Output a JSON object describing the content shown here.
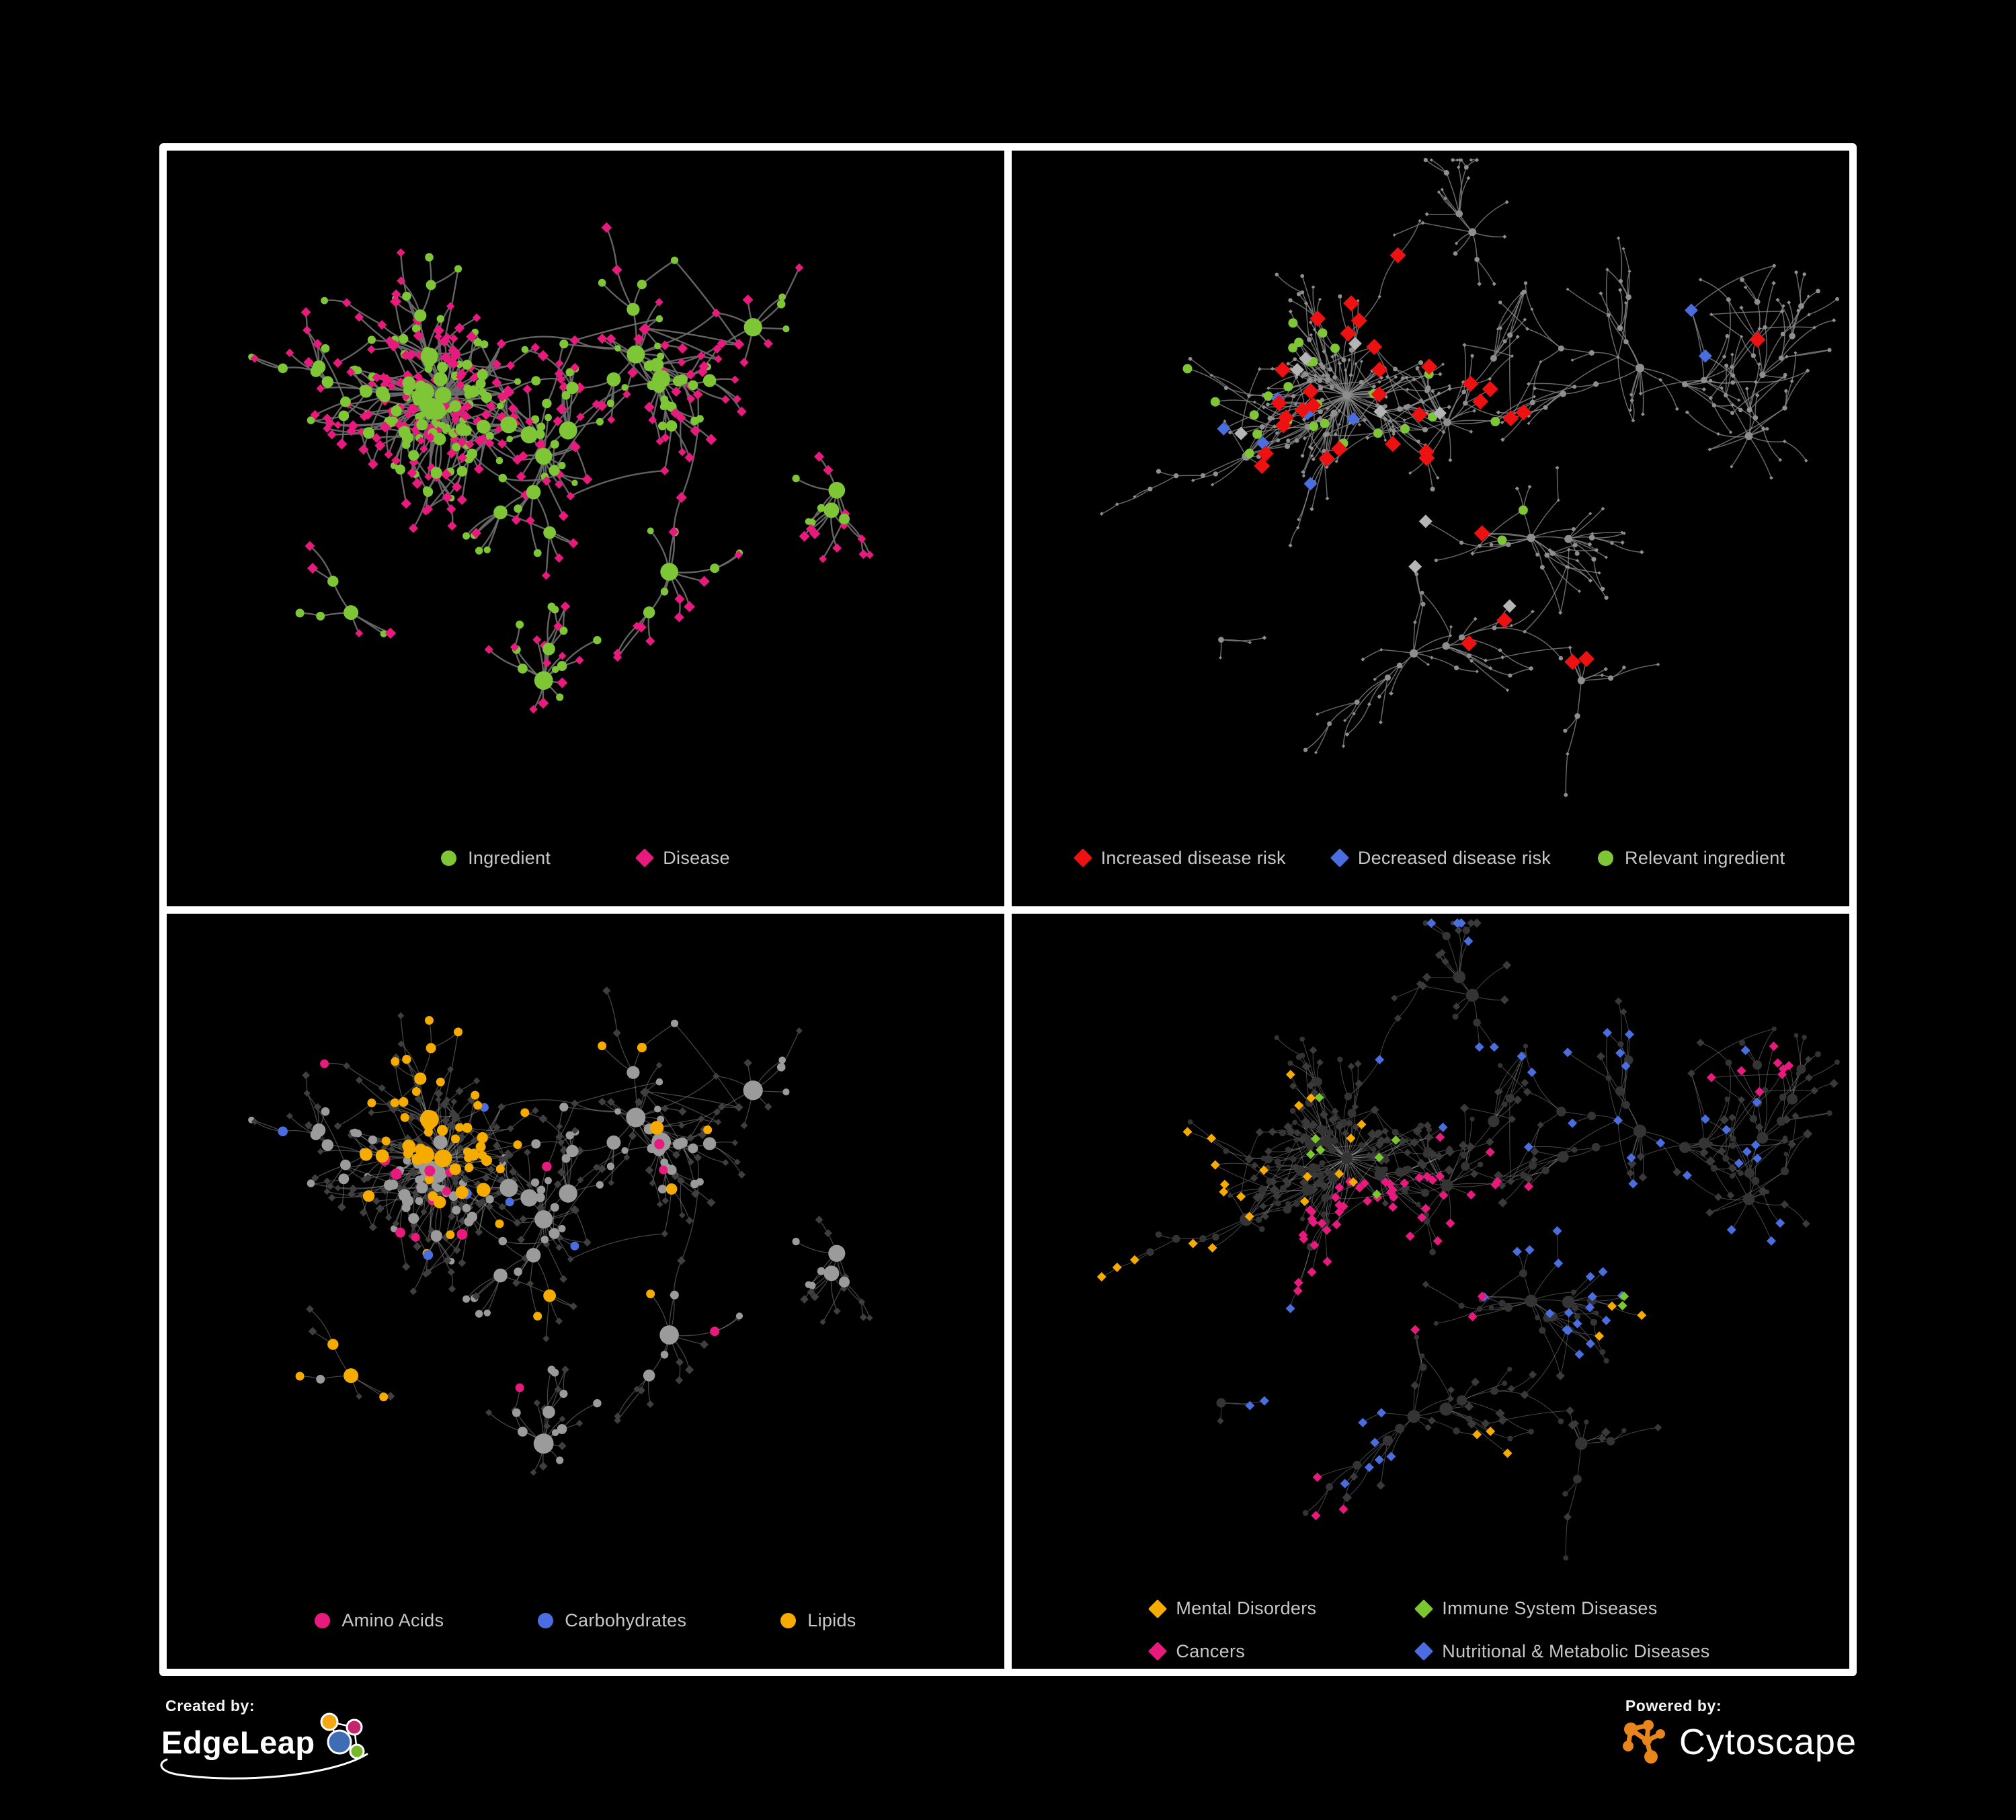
{
  "page": {
    "background": "#000000",
    "frame_color": "#ffffff",
    "legend_text_color": "#c8c8c8"
  },
  "palette": {
    "green": "#7ec636",
    "pink": "#e81a7d",
    "red": "#ee1111",
    "blue": "#4a6ee0",
    "orange": "#f6ab00",
    "lime": "#7ac82e",
    "light_gray": "#b5b5b5"
  },
  "panels": [
    {
      "id": "ingredient-disease",
      "legend_layout": "row",
      "legend_gap": 130,
      "legend": [
        {
          "shape": "circle",
          "color": "#7ec636",
          "label": "Ingredient"
        },
        {
          "shape": "diamond",
          "color": "#e81a7d",
          "label": "Disease"
        }
      ],
      "network": {
        "seed": 13,
        "paint_seed": 501,
        "node_count": 520,
        "hub_power": 2.7,
        "step": 46,
        "decay": 0.988,
        "spread": 1.5,
        "extra_edges": 0.22,
        "link_radius": 165,
        "roots": [
          [
            0.33,
            0.36
          ],
          [
            0.45,
            0.45
          ],
          [
            0.56,
            0.3
          ],
          [
            0.7,
            0.26
          ],
          [
            0.8,
            0.5
          ],
          [
            0.45,
            0.78
          ],
          [
            0.22,
            0.68
          ],
          [
            0.6,
            0.62
          ]
        ],
        "edge": {
          "color": "#6b6b6b",
          "width": 2.4,
          "opacity": 0.92
        }
      },
      "style": {
        "ingredient": {
          "shape": "circle",
          "color": "#7ec636",
          "r": 5.5,
          "hub_grow": 1.1,
          "max": 13
        },
        "disease": {
          "shape": "diamond",
          "color": "#e81a7d",
          "r": 7
        }
      },
      "highlights": []
    },
    {
      "id": "disease-risk",
      "legend_layout": "row",
      "legend_gap": 70,
      "legend": [
        {
          "shape": "diamond",
          "color": "#ee1111",
          "label": "Increased disease risk"
        },
        {
          "shape": "diamond",
          "color": "#4a6ee0",
          "label": "Decreased disease risk"
        },
        {
          "shape": "circle",
          "color": "#7ec636",
          "label": "Relevant ingredient"
        }
      ],
      "network": {
        "seed": 29,
        "paint_seed": 502,
        "node_count": 560,
        "hub_power": 2.5,
        "step": 50,
        "decay": 0.995,
        "spread": 1.35,
        "extra_edges": 0.2,
        "link_radius": 140,
        "roots": [
          [
            0.4,
            0.36
          ],
          [
            0.52,
            0.4
          ],
          [
            0.28,
            0.45
          ],
          [
            0.62,
            0.57
          ],
          [
            0.75,
            0.32
          ],
          [
            0.48,
            0.74
          ],
          [
            0.25,
            0.72
          ],
          [
            0.68,
            0.78
          ],
          [
            0.88,
            0.42
          ],
          [
            0.55,
            0.12
          ]
        ],
        "edge": {
          "color": "#8a8a8a",
          "width": 1.5,
          "opacity": 0.75
        }
      },
      "style": {
        "ingredient": {
          "shape": "circle",
          "color": "#8e8e8e",
          "r": 3.0,
          "hub_grow": 0.3,
          "max": 6
        },
        "disease": {
          "shape": "diamond",
          "color": "#8e8e8e",
          "r": 2.8
        }
      },
      "highlights": [
        {
          "shape": "diamond",
          "color": "#ee1111",
          "size": 12,
          "target": "any",
          "zones": [
            [
              0.42,
              0.38,
              0.2,
              18
            ],
            [
              0.58,
              0.45,
              0.1,
              5
            ],
            [
              0.3,
              0.42,
              0.09,
              4
            ],
            [
              0.7,
              0.76,
              0.06,
              2
            ],
            [
              0.55,
              0.68,
              0.05,
              2
            ],
            [
              0.86,
              0.3,
              0.05,
              1
            ],
            [
              0.48,
              0.22,
              0.08,
              3
            ]
          ]
        },
        {
          "shape": "diamond",
          "color": "#4a6ee0",
          "size": 10,
          "target": "any",
          "zones": [
            [
              0.34,
              0.44,
              0.1,
              4
            ],
            [
              0.845,
              0.255,
              0.05,
              2
            ],
            [
              0.3,
              0.5,
              0.06,
              2
            ]
          ]
        },
        {
          "shape": "diamond",
          "color": "#b5b5b5",
          "size": 10,
          "target": "any",
          "zones": [
            [
              0.4,
              0.44,
              0.16,
              5
            ],
            [
              0.55,
              0.6,
              0.08,
              2
            ],
            [
              0.3,
              0.37,
              0.06,
              2
            ]
          ]
        },
        {
          "shape": "circle",
          "color": "#7ec636",
          "size": 7,
          "target": "any",
          "zones": [
            [
              0.4,
              0.37,
              0.18,
              14
            ],
            [
              0.22,
              0.38,
              0.08,
              4
            ],
            [
              0.15,
              0.6,
              0.05,
              2
            ],
            [
              0.55,
              0.5,
              0.12,
              5
            ],
            [
              0.3,
              0.25,
              0.1,
              4
            ]
          ]
        }
      ]
    },
    {
      "id": "ingredient-classes",
      "legend_layout": "row",
      "legend_gap": 140,
      "legend": [
        {
          "shape": "circle",
          "color": "#e81a7d",
          "label": "Amino Acids"
        },
        {
          "shape": "circle",
          "color": "#4a6ee0",
          "label": "Carbohydrates"
        },
        {
          "shape": "circle",
          "color": "#f6ab00",
          "label": "Lipids"
        }
      ],
      "network": {
        "seed": 13,
        "paint_seed": 503,
        "node_count": 520,
        "hub_power": 2.7,
        "step": 46,
        "decay": 0.988,
        "spread": 1.5,
        "extra_edges": 0.22,
        "link_radius": 165,
        "roots": [
          [
            0.33,
            0.36
          ],
          [
            0.45,
            0.45
          ],
          [
            0.56,
            0.3
          ],
          [
            0.7,
            0.26
          ],
          [
            0.8,
            0.5
          ],
          [
            0.45,
            0.78
          ],
          [
            0.22,
            0.68
          ],
          [
            0.6,
            0.62
          ]
        ],
        "edge": {
          "color": "#9a9a9a",
          "width": 1.3,
          "opacity": 0.45
        }
      },
      "style": {
        "ingredient": {
          "shape": "circle",
          "color": "#9b9b9b",
          "r": 5.5,
          "hub_grow": 1.1,
          "max": 14
        },
        "disease": {
          "shape": "diamond",
          "color": "#3f3f3f",
          "r": 5.5
        }
      },
      "highlights": [
        {
          "shape": "circle",
          "color": "#f6ab00",
          "size": 6.5,
          "target": "ingredient",
          "keep_size": true,
          "zones": [
            [
              0.35,
              0.23,
              0.12,
              40
            ],
            [
              0.3,
              0.42,
              0.1,
              12
            ],
            [
              0.52,
              0.6,
              0.08,
              8
            ],
            [
              0.65,
              0.35,
              0.3,
              8
            ],
            [
              0.25,
              0.75,
              0.15,
              4
            ],
            [
              0.45,
              0.1,
              0.15,
              6
            ]
          ]
        },
        {
          "shape": "circle",
          "color": "#4a6ee0",
          "size": 6.5,
          "target": "ingredient",
          "keep_size": true,
          "zones": [
            [
              0.35,
              0.21,
              0.1,
              9
            ],
            [
              0.45,
              0.55,
              0.2,
              4
            ],
            [
              0.12,
              0.32,
              0.05,
              1
            ],
            [
              0.35,
              0.05,
              0.2,
              2
            ]
          ]
        },
        {
          "shape": "circle",
          "color": "#e81a7d",
          "size": 6.5,
          "target": "ingredient",
          "keep_size": true,
          "zones": [
            [
              0.5,
              0.5,
              0.55,
              16
            ],
            [
              0.06,
              0.45,
              0.08,
              2
            ],
            [
              0.9,
              0.2,
              0.1,
              2
            ]
          ]
        }
      ]
    },
    {
      "id": "disease-categories",
      "legend_layout": "grid2",
      "legend_gap": 150,
      "legend": [
        {
          "shape": "diamond",
          "color": "#f6ab00",
          "label": "Mental Disorders"
        },
        {
          "shape": "diamond",
          "color": "#7ac82e",
          "label": "Immune System Diseases"
        },
        {
          "shape": "diamond",
          "color": "#e81a7d",
          "label": "Cancers"
        },
        {
          "shape": "diamond",
          "color": "#4a6ee0",
          "label": "Nutritional & Metabolic Diseases"
        }
      ],
      "network": {
        "seed": 29,
        "paint_seed": 504,
        "node_count": 560,
        "hub_power": 2.5,
        "step": 50,
        "decay": 0.995,
        "spread": 1.35,
        "extra_edges": 0.2,
        "link_radius": 140,
        "roots": [
          [
            0.4,
            0.36
          ],
          [
            0.52,
            0.4
          ],
          [
            0.28,
            0.45
          ],
          [
            0.62,
            0.57
          ],
          [
            0.75,
            0.32
          ],
          [
            0.48,
            0.74
          ],
          [
            0.25,
            0.72
          ],
          [
            0.68,
            0.78
          ],
          [
            0.88,
            0.42
          ],
          [
            0.55,
            0.12
          ]
        ],
        "edge": {
          "color": "#a8a8a8",
          "width": 1.0,
          "opacity": 0.42
        }
      },
      "style": {
        "ingredient": {
          "shape": "circle",
          "color": "#343434",
          "r": 4.0,
          "hub_grow": 0.8,
          "max": 9
        },
        "disease": {
          "shape": "diamond",
          "color": "#3a3a3a",
          "r": 6
        }
      },
      "highlights": [
        {
          "shape": "diamond",
          "color": "#f6ab00",
          "size": 7,
          "target": "disease",
          "zones": [
            [
              0.16,
              0.45,
              0.13,
              80
            ],
            [
              0.28,
              0.12,
              0.09,
              10
            ],
            [
              0.35,
              0.33,
              0.08,
              10
            ],
            [
              0.55,
              0.88,
              0.1,
              4
            ],
            [
              0.75,
              0.62,
              0.05,
              3
            ],
            [
              0.05,
              0.55,
              0.06,
              5
            ]
          ]
        },
        {
          "shape": "diamond",
          "color": "#e81a7d",
          "size": 7,
          "target": "disease",
          "zones": [
            [
              0.45,
              0.52,
              0.12,
              40
            ],
            [
              0.55,
              0.4,
              0.08,
              10
            ],
            [
              0.88,
              0.2,
              0.06,
              8
            ],
            [
              0.3,
              0.9,
              0.1,
              4
            ],
            [
              0.2,
              0.7,
              0.06,
              3
            ]
          ]
        },
        {
          "shape": "diamond",
          "color": "#4a6ee0",
          "size": 7,
          "target": "disease",
          "zones": [
            [
              0.64,
              0.56,
              0.09,
              20
            ],
            [
              0.6,
              0.08,
              0.22,
              14
            ],
            [
              0.8,
              0.3,
              0.12,
              16
            ],
            [
              0.9,
              0.55,
              0.08,
              8
            ],
            [
              0.35,
              0.65,
              0.12,
              8
            ],
            [
              0.12,
              0.3,
              0.1,
              6
            ],
            [
              0.45,
              0.95,
              0.15,
              5
            ],
            [
              0.08,
              0.08,
              0.1,
              4
            ]
          ]
        },
        {
          "shape": "diamond",
          "color": "#7ac82e",
          "size": 7,
          "target": "disease",
          "zones": [
            [
              0.5,
              0.4,
              0.3,
              7
            ],
            [
              0.25,
              0.93,
              0.06,
              2
            ],
            [
              0.68,
              0.5,
              0.1,
              2
            ]
          ]
        }
      ]
    }
  ],
  "footer": {
    "created_by": "Created by:",
    "edgeleap_name": "EdgeLeap",
    "powered_by": "Powered by:",
    "cytoscape_name": "Cytoscape",
    "edgeleap_colors": {
      "hub": "#3e6db5",
      "orange": "#f3a712",
      "magenta": "#c4266e",
      "green": "#76b82a"
    },
    "cytoscape_color": "#e8861d"
  }
}
